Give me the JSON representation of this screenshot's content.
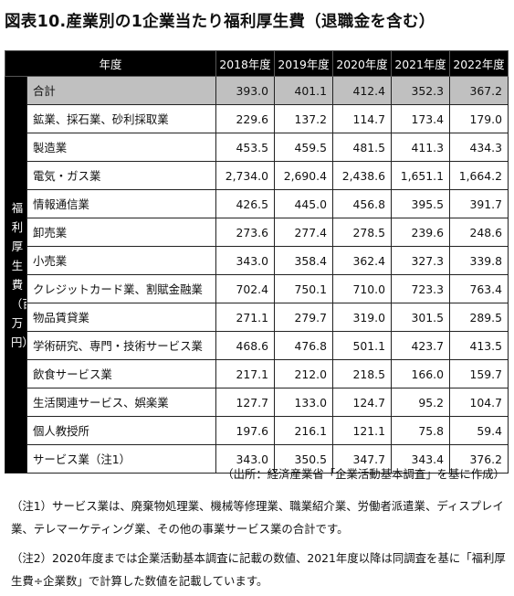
{
  "title": "図表10.産業別の1企業当たり福利厚生費（退職金を含む）",
  "table": {
    "header_label": "年度",
    "years": [
      "2018年度",
      "2019年度",
      "2020年度",
      "2021年度",
      "2022年度"
    ],
    "side_label": "福利厚生費（百万円）",
    "rows": [
      {
        "name": "合計",
        "values": [
          "393.0",
          "401.1",
          "412.4",
          "352.3",
          "367.2"
        ]
      },
      {
        "name": "鉱業、採石業、砂利採取業",
        "values": [
          "229.6",
          "137.2",
          "114.7",
          "173.4",
          "179.0"
        ]
      },
      {
        "name": "製造業",
        "values": [
          "453.5",
          "459.5",
          "481.5",
          "411.3",
          "434.3"
        ]
      },
      {
        "name": "電気・ガス業",
        "values": [
          "2,734.0",
          "2,690.4",
          "2,438.6",
          "1,651.1",
          "1,664.2"
        ]
      },
      {
        "name": "情報通信業",
        "values": [
          "426.5",
          "445.0",
          "456.8",
          "395.5",
          "391.7"
        ]
      },
      {
        "name": "卸売業",
        "values": [
          "273.6",
          "277.4",
          "278.5",
          "239.6",
          "248.6"
        ]
      },
      {
        "name": "小売業",
        "values": [
          "343.0",
          "358.4",
          "362.4",
          "327.3",
          "339.8"
        ]
      },
      {
        "name": "クレジットカード業、割賦金融業",
        "values": [
          "702.4",
          "750.1",
          "710.0",
          "723.3",
          "763.4"
        ]
      },
      {
        "name": "物品賃貸業",
        "values": [
          "271.1",
          "279.7",
          "319.0",
          "301.5",
          "289.5"
        ]
      },
      {
        "name": "学術研究、専門・技術サービス業",
        "values": [
          "468.6",
          "476.8",
          "501.1",
          "423.7",
          "413.5"
        ]
      },
      {
        "name": "飲食サービス業",
        "values": [
          "217.1",
          "212.0",
          "218.5",
          "166.0",
          "159.7"
        ]
      },
      {
        "name": "生活関連サービス、娯楽業",
        "values": [
          "127.7",
          "133.0",
          "124.7",
          "95.2",
          "104.7"
        ]
      },
      {
        "name": "個人教授所",
        "values": [
          "197.6",
          "216.1",
          "121.1",
          "75.8",
          "59.4"
        ]
      },
      {
        "name": "サービス業（注1）",
        "values": [
          "343.0",
          "350.5",
          "347.7",
          "343.4",
          "376.2"
        ]
      }
    ]
  },
  "source": "（出所：経済産業省「企業活動基本調査」を基に作成）",
  "notes": [
    "（注1）サービス業は、廃棄物処理業、機械等修理業、職業紹介業、労働者派遣業、ディスプレイ業、テレマーケティング業、その他の事業サービス業の合計です。",
    "（注2）2020年度までは企業活動基本調査に記載の数値、2021年度以降は同調査を基に「福利厚生費÷企業数」で計算した数値を記載しています。"
  ],
  "colors": {
    "header_bg": "#000000",
    "header_text": "#ffffff",
    "total_row_bg": "#c0c0c0"
  }
}
